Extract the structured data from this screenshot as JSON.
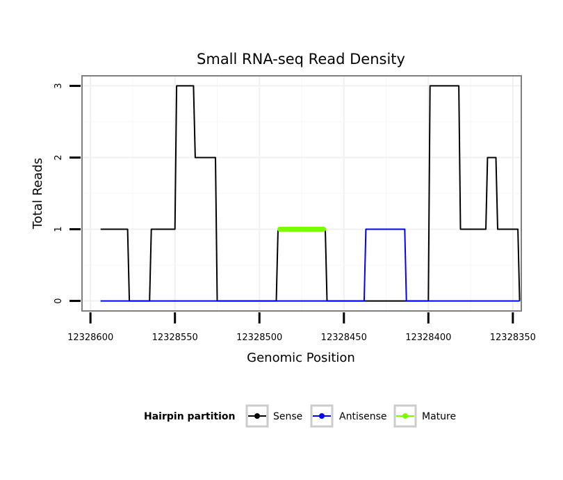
{
  "chart_data": {
    "type": "line",
    "title": "Small RNA-seq Read Density",
    "xlabel": "Genomic Position",
    "ylabel": "Total Reads",
    "xlim": [
      12328605,
      12328345
    ],
    "ylim": [
      -0.14,
      3.14
    ],
    "x_reversed": true,
    "x_ticks": [
      12328600,
      12328550,
      12328500,
      12328450,
      12328400,
      12328350
    ],
    "x_tick_labels": [
      "12328600",
      "12328550",
      "12328500",
      "12328450",
      "12328400",
      "12328350"
    ],
    "y_ticks": [
      0,
      1,
      2,
      3
    ],
    "y_tick_labels": [
      "0",
      "1",
      "2",
      "3"
    ],
    "grid": true,
    "legend": {
      "title": "Hairpin partition",
      "placement": "bottom",
      "entries": [
        "Sense",
        "Antisense",
        "Mature"
      ]
    },
    "series": [
      {
        "name": "Sense",
        "color": "#000000",
        "x": [
          12328594,
          12328578,
          12328577,
          12328565,
          12328564,
          12328550,
          12328549,
          12328539,
          12328538,
          12328526,
          12328525,
          12328490,
          12328489,
          12328461,
          12328460,
          12328400,
          12328399,
          12328382,
          12328381,
          12328366,
          12328365,
          12328360,
          12328359,
          12328353,
          12328352,
          12328347,
          12328346
        ],
        "values": [
          1,
          1,
          0,
          0,
          1,
          1,
          3,
          3,
          2,
          2,
          0,
          0,
          1,
          1,
          0,
          0,
          3,
          3,
          1,
          1,
          2,
          2,
          1,
          1,
          1,
          1,
          0
        ]
      },
      {
        "name": "Antisense",
        "color": "#0000ff",
        "x": [
          12328594,
          12328438,
          12328437,
          12328414,
          12328413,
          12328346
        ],
        "values": [
          0,
          0,
          1,
          1,
          0,
          0
        ]
      },
      {
        "name": "Mature",
        "color": "#7cfc00",
        "x": [
          12328488,
          12328462
        ],
        "values": [
          1,
          1
        ]
      }
    ]
  }
}
